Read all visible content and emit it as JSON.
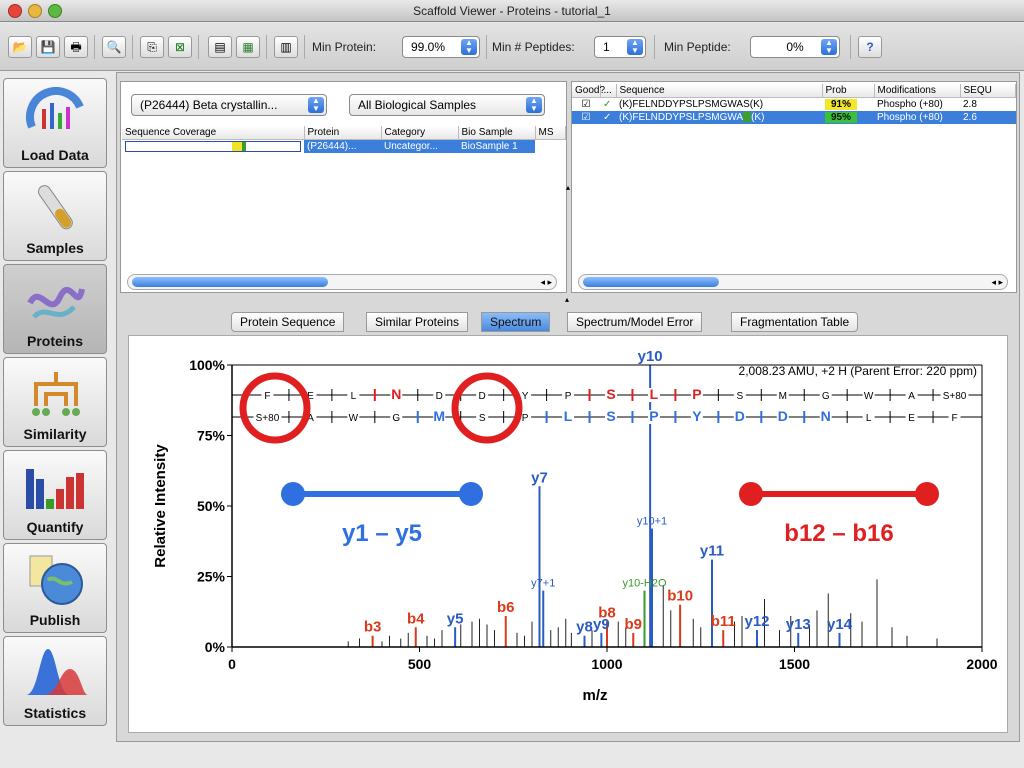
{
  "window": {
    "title": "Scaffold Viewer - Proteins - tutorial_1"
  },
  "toolbar": {
    "min_protein_label": "Min Protein:",
    "min_protein_value": "99.0%",
    "min_peptides_label": "Min # Peptides:",
    "min_peptides_value": "1",
    "min_peptide_label": "Min Peptide:",
    "min_peptide_value": "0%"
  },
  "sidebar": {
    "items": [
      {
        "label": "Load Data"
      },
      {
        "label": "Samples"
      },
      {
        "label": "Proteins"
      },
      {
        "label": "Similarity"
      },
      {
        "label": "Quantify"
      },
      {
        "label": "Publish"
      },
      {
        "label": "Statistics"
      }
    ]
  },
  "protein_panel": {
    "protein_select": "(P26444) Beta crystallin...",
    "sample_select": "All Biological Samples",
    "columns": [
      "Sequence Coverage",
      "Protein",
      "Category",
      "Bio Sample",
      "MS"
    ],
    "row": {
      "protein": "(P26444)...",
      "category": "Uncategor...",
      "bio_sample": "BioSample 1"
    }
  },
  "peptide_panel": {
    "columns": [
      "Good?",
      "...",
      "Sequence",
      "Prob",
      "Modifications",
      "SEQU"
    ],
    "rows": [
      {
        "sequence": "(K)FELNDDYPSLPSMGWAS(K)",
        "prob": "91%",
        "mod": "Phospho (+80)",
        "extra": "2.8"
      },
      {
        "sequence": "(K)FELNDDYPSLPSMGWA",
        "seq_tail": "(K)",
        "prob": "95%",
        "mod": "Phospho (+80)",
        "extra": "2.6"
      }
    ]
  },
  "tabs": [
    "Protein Sequence",
    "Similar Proteins",
    "Spectrum",
    "Spectrum/Model Error",
    "Fragmentation Table"
  ],
  "spectrum": {
    "info": "2,008.23 AMU, +2 H (Parent Error: 220 ppm)",
    "xlabel": "m/z",
    "ylabel": "Relative Intensity",
    "xticks": [
      "0",
      "500",
      "1000",
      "1500",
      "2000"
    ],
    "yticks": [
      "100%",
      "75%",
      "50%",
      "25%",
      "0%"
    ],
    "top_ladder": [
      "F",
      "E",
      "L",
      "N",
      "D",
      "D",
      "Y",
      "P",
      "S",
      "L",
      "P",
      "S",
      "M",
      "G",
      "W",
      "A",
      "S+80"
    ],
    "bottom_ladder": [
      "S+80",
      "A",
      "W",
      "G",
      "M",
      "S",
      "P",
      "L",
      "S",
      "P",
      "Y",
      "D",
      "D",
      "N",
      "L",
      "E",
      "F"
    ],
    "annotations": {
      "y_range": "y1 – y5",
      "b_range": "b12 – b16"
    }
  },
  "chart_data": {
    "type": "bar",
    "xlabel": "m/z",
    "ylabel": "Relative Intensity",
    "xlim": [
      0,
      2000
    ],
    "ylim": [
      0,
      100
    ],
    "peaks": [
      {
        "x": 820,
        "y": 57,
        "label": "y7",
        "color": "#2a5cc4"
      },
      {
        "x": 1115,
        "y": 100,
        "label": "y10",
        "color": "#2a5cc4"
      },
      {
        "x": 1280,
        "y": 31,
        "label": "y11",
        "color": "#2a5cc4"
      },
      {
        "x": 1100,
        "y": 20,
        "label": "y10-H2O",
        "color": "#3a9a2a"
      },
      {
        "x": 1120,
        "y": 42,
        "label": "y10+1",
        "color": "#2a5cc4"
      },
      {
        "x": 830,
        "y": 20,
        "label": "y7+1",
        "color": "#2a5cc4"
      },
      {
        "x": 375,
        "y": 4,
        "label": "b3",
        "color": "#d83a1a"
      },
      {
        "x": 490,
        "y": 7,
        "label": "b4",
        "color": "#d83a1a"
      },
      {
        "x": 595,
        "y": 7,
        "label": "y5",
        "color": "#2a5cc4"
      },
      {
        "x": 730,
        "y": 11,
        "label": "b6",
        "color": "#d83a1a"
      },
      {
        "x": 940,
        "y": 4,
        "label": "y8",
        "color": "#2a5cc4"
      },
      {
        "x": 1000,
        "y": 9,
        "label": "b8",
        "color": "#d83a1a"
      },
      {
        "x": 985,
        "y": 5,
        "label": "y9",
        "color": "#2a5cc4"
      },
      {
        "x": 1070,
        "y": 5,
        "label": "b9",
        "color": "#d83a1a"
      },
      {
        "x": 1195,
        "y": 15,
        "label": "b10",
        "color": "#d83a1a"
      },
      {
        "x": 1310,
        "y": 6,
        "label": "b11",
        "color": "#d83a1a"
      },
      {
        "x": 1400,
        "y": 6,
        "label": "y12",
        "color": "#2a5cc4"
      },
      {
        "x": 1510,
        "y": 5,
        "label": "y13",
        "color": "#2a5cc4"
      },
      {
        "x": 1620,
        "y": 5,
        "label": "y14",
        "color": "#2a5cc4"
      }
    ],
    "background_peaks": [
      [
        310,
        2
      ],
      [
        340,
        3
      ],
      [
        400,
        2
      ],
      [
        420,
        4
      ],
      [
        450,
        3
      ],
      [
        470,
        5
      ],
      [
        520,
        4
      ],
      [
        540,
        3
      ],
      [
        560,
        6
      ],
      [
        610,
        8
      ],
      [
        640,
        9
      ],
      [
        660,
        10
      ],
      [
        680,
        8
      ],
      [
        700,
        6
      ],
      [
        760,
        5
      ],
      [
        780,
        4
      ],
      [
        800,
        9
      ],
      [
        850,
        6
      ],
      [
        870,
        7
      ],
      [
        890,
        10
      ],
      [
        905,
        5
      ],
      [
        960,
        6
      ],
      [
        1030,
        9
      ],
      [
        1050,
        7
      ],
      [
        1150,
        22
      ],
      [
        1170,
        13
      ],
      [
        1230,
        10
      ],
      [
        1250,
        7
      ],
      [
        1340,
        9
      ],
      [
        1360,
        11
      ],
      [
        1420,
        17
      ],
      [
        1460,
        6
      ],
      [
        1490,
        11
      ],
      [
        1540,
        8
      ],
      [
        1560,
        13
      ],
      [
        1590,
        19
      ],
      [
        1650,
        12
      ],
      [
        1680,
        9
      ],
      [
        1720,
        24
      ],
      [
        1760,
        7
      ],
      [
        1800,
        4
      ],
      [
        1880,
        3
      ]
    ]
  }
}
